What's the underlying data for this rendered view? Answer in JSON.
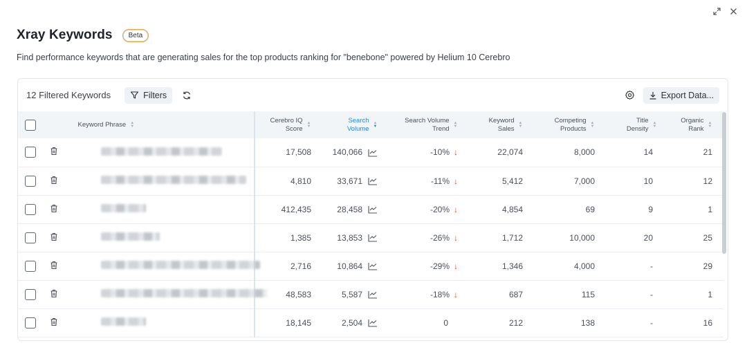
{
  "title": "Xray Keywords",
  "badge": "Beta",
  "subtitle": "Find performance keywords that are generating sales for the top products ranking for \"benebone\" powered by Helium 10 Cerebro",
  "toolbar": {
    "count_label": "12 Filtered Keywords",
    "filters_label": "Filters",
    "export_label": "Export Data..."
  },
  "columns": {
    "keyword": "Keyword Phrase",
    "cerebro_1": "Cerebro IQ",
    "cerebro_2": "Score",
    "volume_1": "Search",
    "volume_2": "Volume",
    "trend_1": "Search Volume",
    "trend_2": "Trend",
    "sales_1": "Keyword",
    "sales_2": "Sales",
    "competing_1": "Competing",
    "competing_2": "Products",
    "density_1": "Title",
    "density_2": "Density",
    "rank_1": "Organic",
    "rank_2": "Rank"
  },
  "rows": [
    {
      "cerebro": "17,508",
      "volume": "140,066",
      "trend": "-10%",
      "sales": "22,074",
      "competing": "8,000",
      "density": "14",
      "rank": "21"
    },
    {
      "cerebro": "4,810",
      "volume": "33,671",
      "trend": "-11%",
      "sales": "5,412",
      "competing": "7,000",
      "density": "10",
      "rank": "12"
    },
    {
      "cerebro": "412,435",
      "volume": "28,458",
      "trend": "-20%",
      "sales": "4,854",
      "competing": "69",
      "density": "9",
      "rank": "1"
    },
    {
      "cerebro": "1,385",
      "volume": "13,853",
      "trend": "-26%",
      "sales": "1,712",
      "competing": "10,000",
      "density": "20",
      "rank": "25"
    },
    {
      "cerebro": "2,716",
      "volume": "10,864",
      "trend": "-29%",
      "sales": "1,346",
      "competing": "4,000",
      "density": "-",
      "rank": "29"
    },
    {
      "cerebro": "48,583",
      "volume": "5,587",
      "trend": "-18%",
      "sales": "687",
      "competing": "115",
      "density": "-",
      "rank": "1"
    },
    {
      "cerebro": "18,145",
      "volume": "2,504",
      "trend": "0",
      "sales": "212",
      "competing": "138",
      "density": "-",
      "rank": "16"
    }
  ],
  "colors": {
    "accent": "#1e88e5",
    "trend_down": "#e53935",
    "header_bg": "#f2f5f8"
  }
}
